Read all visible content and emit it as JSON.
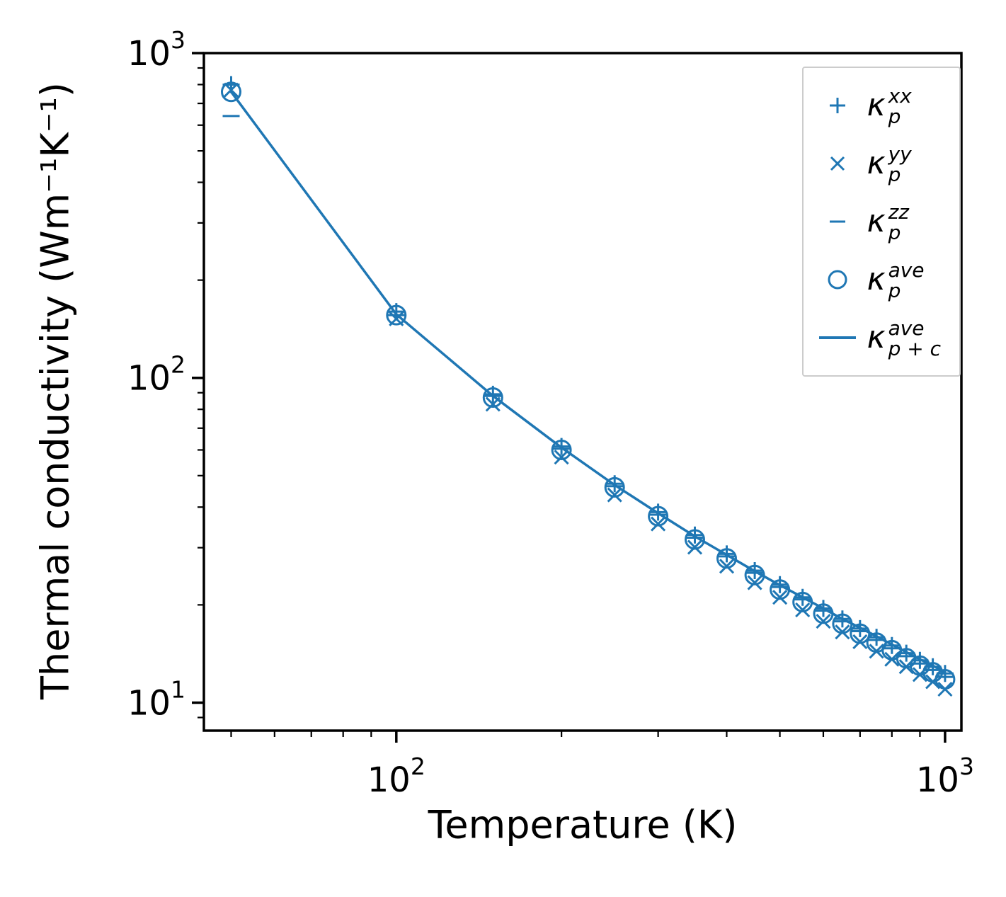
{
  "figure": {
    "accent_color": "#1f77b4",
    "axis_color": "#000000",
    "legend_border_color": "#cccccc"
  },
  "chart_data": {
    "type": "line",
    "subtype": "log-log scatter with line",
    "title": "",
    "x_label": "Temperature (K)",
    "y_label": "Thermal conductivity (Wm⁻¹K⁻¹)",
    "x_scale": "log",
    "y_scale": "log",
    "xlim": [
      44.6,
      1071
    ],
    "ylim": [
      8.2,
      1000
    ],
    "grid": false,
    "legend_position": "upper right",
    "x": [
      50,
      100,
      150,
      200,
      250,
      300,
      350,
      400,
      450,
      500,
      550,
      600,
      650,
      700,
      750,
      800,
      850,
      900,
      950,
      1000
    ],
    "series": [
      {
        "name": "kappa_p_xx",
        "marker": "plus",
        "values": [
          800,
          160,
          89,
          61.5,
          47.2,
          38.6,
          32.8,
          28.7,
          25.5,
          23.1,
          21.1,
          19.5,
          18.1,
          16.9,
          15.9,
          15.0,
          14.2,
          13.5,
          12.9,
          12.3
        ]
      },
      {
        "name": "kappa_p_yy",
        "marker": "x",
        "values": [
          770,
          152,
          83,
          57.0,
          43.6,
          35.5,
          30.1,
          26.3,
          23.4,
          21.1,
          19.3,
          17.8,
          16.5,
          15.4,
          14.4,
          13.6,
          12.9,
          12.2,
          11.6,
          11.0
        ]
      },
      {
        "name": "kappa_p_zz",
        "marker": "hline",
        "values": [
          640,
          156,
          88,
          60.5,
          46.4,
          37.9,
          32.2,
          28.2,
          25.1,
          22.7,
          20.8,
          19.2,
          17.8,
          16.6,
          15.6,
          14.7,
          13.9,
          13.2,
          12.6,
          12.0
        ]
      },
      {
        "name": "kappa_p_ave",
        "marker": "circle",
        "values": [
          760,
          156,
          87,
          60.0,
          46.0,
          37.5,
          31.8,
          27.8,
          24.7,
          22.3,
          20.4,
          18.8,
          17.5,
          16.3,
          15.3,
          14.5,
          13.7,
          13.0,
          12.4,
          11.8
        ]
      },
      {
        "name": "kappa_p_plus_c_ave",
        "marker": "line",
        "values": [
          760,
          157,
          88,
          61.0,
          46.8,
          38.3,
          32.5,
          28.5,
          25.4,
          23.0,
          21.1,
          19.5,
          18.1,
          17.0,
          16.0,
          15.1,
          14.3,
          13.6,
          13.0,
          12.4
        ]
      }
    ],
    "x_ticks": [
      {
        "v": 100,
        "base": "10",
        "exp": "2"
      },
      {
        "v": 1000,
        "base": "10",
        "exp": "3"
      }
    ],
    "y_ticks": [
      {
        "v": 10,
        "base": "10",
        "exp": "1"
      },
      {
        "v": 100,
        "base": "10",
        "exp": "2"
      },
      {
        "v": 1000,
        "base": "10",
        "exp": "3"
      }
    ],
    "x_minor_ticks": [
      50,
      60,
      70,
      80,
      90,
      200,
      300,
      400,
      500,
      600,
      700,
      800,
      900
    ],
    "y_minor_ticks": [
      9,
      20,
      30,
      40,
      50,
      60,
      70,
      80,
      90,
      200,
      300,
      400,
      500,
      600,
      700,
      800,
      900
    ]
  },
  "legend": {
    "items": [
      {
        "marker": "plus",
        "kappa": "κ",
        "sup": "xx",
        "sub": "p"
      },
      {
        "marker": "x",
        "kappa": "κ",
        "sup": "yy",
        "sub": "p"
      },
      {
        "marker": "hline",
        "kappa": "κ",
        "sup": "zz",
        "sub": "p"
      },
      {
        "marker": "circle",
        "kappa": "κ",
        "sup": "ave",
        "sub": "p"
      },
      {
        "marker": "line",
        "kappa": "κ",
        "sup": "ave",
        "sub": "p + c"
      }
    ]
  }
}
